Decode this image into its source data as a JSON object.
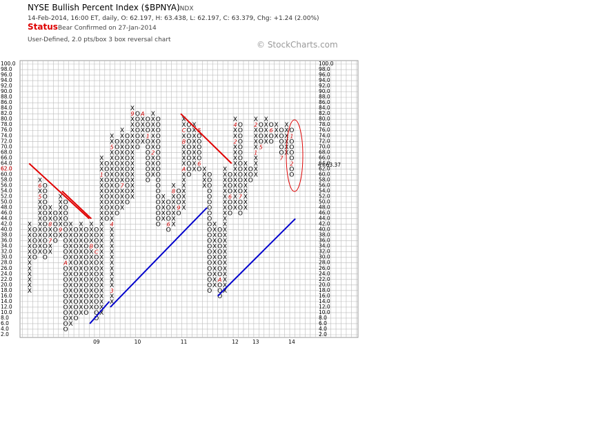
{
  "chart_data": {
    "type": "point-and-figure",
    "title": "NYSE Bullish Percent Index ($BPNYA)",
    "symbol_type": "INDX",
    "subtitle": "14-Feb-2014, 16:00 ET, daily, O: 62.197, H: 63.438, L: 62.197, C: 63.379, Chg: +1.24 (2.00%)",
    "status_label": "Status",
    "status": "Bear Confirmed on 27-Jan-2014",
    "description": "User-Defined, 2.0 pts/box 3 box reversal chart",
    "copyright": "© StockCharts.com",
    "box_size": 2,
    "ylim": [
      2,
      100
    ],
    "yticks": [
      {
        "value": 2,
        "label": "2.0"
      },
      {
        "value": 4,
        "label": "4.0"
      },
      {
        "value": 6,
        "label": "6.0"
      },
      {
        "value": 8,
        "label": "8.0"
      },
      {
        "value": 10,
        "label": "10.0"
      },
      {
        "value": 12,
        "label": "12.0"
      },
      {
        "value": 14,
        "label": "14.0"
      },
      {
        "value": 16,
        "label": "16.0"
      },
      {
        "value": 18,
        "label": "18.0"
      },
      {
        "value": 20,
        "label": "20.0"
      },
      {
        "value": 22,
        "label": "22.0"
      },
      {
        "value": 24,
        "label": "24.0"
      },
      {
        "value": 26,
        "label": "26.0"
      },
      {
        "value": 28,
        "label": "28.0"
      },
      {
        "value": 30,
        "label": "30.0"
      },
      {
        "value": 32,
        "label": "32.0"
      },
      {
        "value": 34,
        "label": "34.0"
      },
      {
        "value": 36,
        "label": "36.0"
      },
      {
        "value": 38,
        "label": "38.0"
      },
      {
        "value": 40,
        "label": "40.0"
      },
      {
        "value": 42,
        "label": "42.0"
      },
      {
        "value": 44,
        "label": "44.0"
      },
      {
        "value": 46,
        "label": "46.0"
      },
      {
        "value": 48,
        "label": "48.0"
      },
      {
        "value": 50,
        "label": "50.0"
      },
      {
        "value": 52,
        "label": "52.0"
      },
      {
        "value": 54,
        "label": "54.0"
      },
      {
        "value": 56,
        "label": "56.0"
      },
      {
        "value": 58,
        "label": "58.0"
      },
      {
        "value": 60,
        "label": "60.0"
      },
      {
        "value": 62,
        "label": "62.0"
      },
      {
        "value": 64,
        "label": "64.0"
      },
      {
        "value": 66,
        "label": "66.0"
      },
      {
        "value": 68,
        "label": "68.0"
      },
      {
        "value": 70,
        "label": "70.0"
      },
      {
        "value": 72,
        "label": "72.0"
      },
      {
        "value": 74,
        "label": "74.0"
      },
      {
        "value": 76,
        "label": "76.0"
      },
      {
        "value": 78,
        "label": "78.0"
      },
      {
        "value": 80,
        "label": "80.0"
      },
      {
        "value": 82,
        "label": "82.0"
      },
      {
        "value": 84,
        "label": "84.0"
      },
      {
        "value": 86,
        "label": "86.0"
      },
      {
        "value": 88,
        "label": "88.0"
      },
      {
        "value": 90,
        "label": "90.0"
      },
      {
        "value": 92,
        "label": "92.0"
      },
      {
        "value": 94,
        "label": "94.0"
      },
      {
        "value": 96,
        "label": "96.0"
      },
      {
        "value": 98,
        "label": "98.0"
      },
      {
        "value": 100,
        "label": "100.0"
      }
    ],
    "xticks": [
      {
        "value": 13,
        "label": "09"
      },
      {
        "value": 21,
        "label": "10"
      },
      {
        "value": 30,
        "label": "11"
      },
      {
        "value": 40,
        "label": "12"
      },
      {
        "value": 44,
        "label": "13"
      },
      {
        "value": 51,
        "label": "14"
      }
    ],
    "columns": [
      {
        "box": "X",
        "from": 18,
        "to": 42
      },
      {
        "box": "O",
        "from": 40,
        "to": 30
      },
      {
        "box": "X",
        "from": 32,
        "to": 58
      },
      {
        "box": "O",
        "from": 56,
        "to": 30
      },
      {
        "box": "X",
        "from": 32,
        "to": 48
      },
      {
        "box": "O",
        "from": 46,
        "to": 36
      },
      {
        "box": "X",
        "from": 38,
        "to": 52
      },
      {
        "box": "O",
        "from": 50,
        "to": 4
      },
      {
        "box": "X",
        "from": 6,
        "to": 42
      },
      {
        "box": "O",
        "from": 40,
        "to": 8
      },
      {
        "box": "X",
        "from": 10,
        "to": 42
      },
      {
        "box": "O",
        "from": 40,
        "to": 10
      },
      {
        "box": "X",
        "from": 12,
        "to": 42
      },
      {
        "box": "O",
        "from": 40,
        "to": 8
      },
      {
        "box": "X",
        "from": 10,
        "to": 66
      },
      {
        "box": "O",
        "from": 64,
        "to": 44
      },
      {
        "box": "X",
        "from": 14,
        "to": 74
      },
      {
        "box": "O",
        "from": 72,
        "to": 46
      },
      {
        "box": "X",
        "from": 48,
        "to": 76
      },
      {
        "box": "O",
        "from": 74,
        "to": 50
      },
      {
        "box": "X",
        "from": 52,
        "to": 84
      },
      {
        "box": "O",
        "from": 82,
        "to": 70
      },
      {
        "box": "X",
        "from": 72,
        "to": 82
      },
      {
        "box": "O",
        "from": 80,
        "to": 58
      },
      {
        "box": "X",
        "from": 60,
        "to": 82
      },
      {
        "box": "O",
        "from": 80,
        "to": 42
      },
      {
        "box": "X",
        "from": 44,
        "to": 52
      },
      {
        "box": "O",
        "from": 50,
        "to": 40
      },
      {
        "box": "X",
        "from": 42,
        "to": 56
      },
      {
        "box": "O",
        "from": 54,
        "to": 46
      },
      {
        "box": "X",
        "from": 48,
        "to": 80
      },
      {
        "box": "O",
        "from": 78,
        "to": 60
      },
      {
        "box": "X",
        "from": 62,
        "to": 78
      },
      {
        "box": "O",
        "from": 76,
        "to": 62
      },
      {
        "box": "X",
        "from": 56,
        "to": 62
      },
      {
        "box": "O",
        "from": 60,
        "to": 18
      },
      {
        "box": "X",
        "from": 20,
        "to": 42
      },
      {
        "box": "O",
        "from": 40,
        "to": 16
      },
      {
        "box": "X",
        "from": 18,
        "to": 62
      },
      {
        "box": "O",
        "from": 60,
        "to": 46
      },
      {
        "box": "X",
        "from": 48,
        "to": 80
      },
      {
        "box": "O",
        "from": 78,
        "to": 46
      },
      {
        "box": "X",
        "from": 48,
        "to": 64
      },
      {
        "box": "O",
        "from": 62,
        "to": 58
      },
      {
        "box": "X",
        "from": 60,
        "to": 80
      },
      {
        "box": "O",
        "from": 78,
        "to": 70
      },
      {
        "box": "X",
        "from": 72,
        "to": 80
      },
      {
        "box": "O",
        "from": 78,
        "to": 72
      },
      {
        "box": "X",
        "from": 74,
        "to": 78
      },
      {
        "box": "O",
        "from": 76,
        "to": 66
      },
      {
        "box": "X",
        "from": 68,
        "to": 78
      },
      {
        "box": "O",
        "from": 76,
        "to": 60
      }
    ],
    "month_marks": [
      {
        "column": 2,
        "box": 52,
        "label": "5"
      },
      {
        "column": 2,
        "box": 56,
        "label": "6"
      },
      {
        "column": 4,
        "box": 36,
        "label": "7"
      },
      {
        "column": 4,
        "box": 42,
        "label": "8"
      },
      {
        "column": 6,
        "box": 40,
        "label": "9"
      },
      {
        "column": 7,
        "box": 28,
        "label": "A"
      },
      {
        "column": 12,
        "box": 34,
        "label": "B"
      },
      {
        "column": 13,
        "box": 32,
        "label": "C"
      },
      {
        "column": 14,
        "box": 60,
        "label": "1"
      },
      {
        "column": 16,
        "box": 18,
        "label": "3"
      },
      {
        "column": 16,
        "box": 42,
        "label": "4"
      },
      {
        "column": 16,
        "box": 70,
        "label": "5"
      },
      {
        "column": 18,
        "box": 56,
        "label": "7"
      },
      {
        "column": 20,
        "box": 82,
        "label": "9"
      },
      {
        "column": 22,
        "box": 82,
        "label": "A"
      },
      {
        "column": 23,
        "box": 74,
        "label": "1"
      },
      {
        "column": 24,
        "box": 68,
        "label": "2"
      },
      {
        "column": 27,
        "box": 42,
        "label": "6"
      },
      {
        "column": 28,
        "box": 54,
        "label": "8"
      },
      {
        "column": 29,
        "box": 48,
        "label": "9"
      },
      {
        "column": 30,
        "box": 62,
        "label": "A"
      },
      {
        "column": 30,
        "box": 72,
        "label": "B"
      },
      {
        "column": 30,
        "box": 76,
        "label": "C"
      },
      {
        "column": 33,
        "box": 76,
        "label": "5"
      },
      {
        "column": 33,
        "box": 64,
        "label": "6"
      },
      {
        "column": 37,
        "box": 22,
        "label": "A"
      },
      {
        "column": 39,
        "box": 52,
        "label": "6"
      },
      {
        "column": 40,
        "box": 72,
        "label": "2"
      },
      {
        "column": 40,
        "box": 78,
        "label": "4"
      },
      {
        "column": 41,
        "box": 52,
        "label": "7"
      },
      {
        "column": 44,
        "box": 68,
        "label": "1"
      },
      {
        "column": 44,
        "box": 78,
        "label": "2"
      },
      {
        "column": 45,
        "box": 70,
        "label": "5"
      },
      {
        "column": 47,
        "box": 76,
        "label": "6"
      },
      {
        "column": 49,
        "box": 66,
        "label": "7"
      },
      {
        "column": 51,
        "box": 74,
        "label": "1"
      },
      {
        "column": 51,
        "box": 64,
        "label": "2"
      }
    ],
    "trendlines": [
      {
        "color": "#e00000",
        "from": [
          -0.1,
          64
        ],
        "to": [
          11.6,
          44
        ]
      },
      {
        "color": "#e00000",
        "from": [
          6.3,
          54
        ],
        "to": [
          12,
          44
        ]
      },
      {
        "color": "#e00000",
        "from": [
          29.4,
          82
        ],
        "to": [
          39.3,
          64
        ]
      },
      {
        "color": "#0000cc",
        "from": [
          11.7,
          6
        ],
        "to": [
          15.5,
          14
        ]
      },
      {
        "color": "#0000cc",
        "from": [
          15.7,
          12
        ],
        "to": [
          34.5,
          48
        ]
      },
      {
        "color": "#0000cc",
        "from": [
          36.6,
          16
        ],
        "to": [
          51.7,
          44
        ]
      }
    ],
    "left_marker": {
      "value": 62,
      "label": "62.0"
    },
    "last_value": {
      "value": 63.37,
      "label": "<<63.37"
    }
  }
}
